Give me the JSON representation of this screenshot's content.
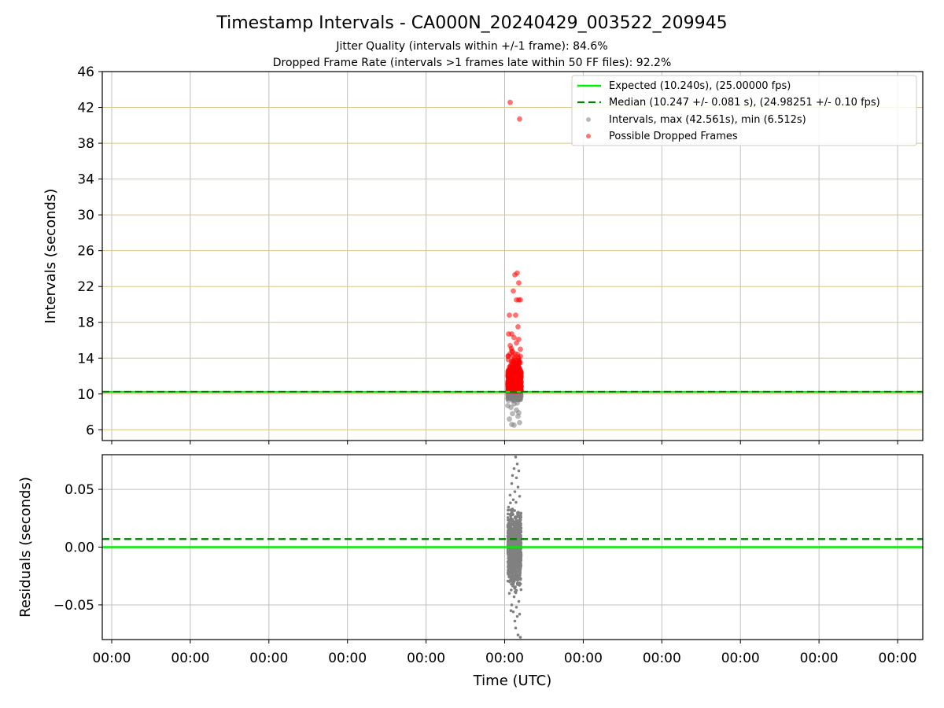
{
  "chart_data": [
    {
      "type": "scatter",
      "panel": "top",
      "title": "Timestamp Intervals - CA000N_20240429_003522_209945",
      "subtitle_lines": [
        "Jitter Quality (intervals within +/-1 frame): 84.6%",
        "Dropped Frame Rate (intervals >1 frames late within 50 FF files): 92.2%"
      ],
      "ylabel": "Intervals (seconds)",
      "xlabel": "",
      "ylim": [
        4.8,
        46
      ],
      "yticks": [
        6,
        10,
        14,
        18,
        22,
        26,
        30,
        34,
        38,
        42,
        46
      ],
      "xlim": [
        -0.12,
        10.32
      ],
      "xtick_positions": [
        0,
        1,
        2,
        3,
        4,
        5,
        6,
        7,
        8,
        9,
        10
      ],
      "xtick_labels": [
        "00:00",
        "00:00",
        "00:00",
        "00:00",
        "00:00",
        "00:00",
        "00:00",
        "00:00",
        "00:00",
        "00:00",
        "00:00"
      ],
      "grid": true,
      "legend_position": "top-right",
      "legend": [
        "Expected (10.240s), (25.00000 fps)",
        "Median (10.247 +/- 0.081 s), (24.98251 +/- 0.10 fps)",
        "Intervals, max (42.561s), min (6.512s)",
        "Possible Dropped Frames"
      ],
      "expected_line": 10.24,
      "median_line": 10.247,
      "series": [
        {
          "name": "Intervals",
          "color": "#808080",
          "points": [
            [
              5.05,
              9.6
            ],
            [
              5.1,
              9.3
            ],
            [
              5.12,
              8.9
            ],
            [
              5.08,
              8.5
            ],
            [
              5.15,
              8.2
            ],
            [
              5.1,
              7.8
            ],
            [
              5.17,
              7.5
            ],
            [
              5.06,
              7.2
            ],
            [
              5.09,
              6.6
            ],
            [
              5.12,
              6.52
            ],
            [
              5.19,
              6.8
            ],
            [
              5.16,
              9.0
            ],
            [
              5.04,
              8.7
            ],
            [
              5.2,
              9.4
            ],
            [
              5.18,
              7.9
            ]
          ]
        },
        {
          "name": "Possible Dropped Frames",
          "color": "#ff0000",
          "points": [
            [
              5.07,
              42.56
            ],
            [
              5.19,
              40.7
            ],
            [
              5.13,
              23.3
            ],
            [
              5.16,
              23.5
            ],
            [
              5.18,
              22.4
            ],
            [
              5.11,
              21.5
            ],
            [
              5.15,
              20.5
            ],
            [
              5.18,
              20.5
            ],
            [
              5.2,
              20.5
            ],
            [
              5.06,
              18.8
            ],
            [
              5.14,
              18.8
            ],
            [
              5.17,
              17.5
            ],
            [
              5.05,
              16.7
            ],
            [
              5.09,
              16.7
            ],
            [
              5.12,
              16.3
            ],
            [
              5.18,
              16.1
            ],
            [
              5.15,
              15.7
            ],
            [
              5.07,
              15.4
            ],
            [
              5.2,
              15.0
            ],
            [
              5.1,
              14.7
            ]
          ]
        }
      ]
    },
    {
      "type": "scatter",
      "panel": "bottom",
      "ylabel": "Residuals (seconds)",
      "xlabel": "Time (UTC)",
      "ylim": [
        -0.08,
        0.08
      ],
      "yticks": [
        -0.05,
        0.0,
        0.05
      ],
      "ytick_labels": [
        "−0.05",
        "0.00",
        "0.05"
      ],
      "xlim": [
        -0.12,
        10.32
      ],
      "xtick_positions": [
        0,
        1,
        2,
        3,
        4,
        5,
        6,
        7,
        8,
        9,
        10
      ],
      "xtick_labels": [
        "00:00",
        "00:00",
        "00:00",
        "00:00",
        "00:00",
        "00:00",
        "00:00",
        "00:00",
        "00:00",
        "00:00",
        "00:00"
      ],
      "grid": true,
      "expected_line": 0.0,
      "median_line": 0.007,
      "series": [
        {
          "name": "Residuals",
          "color": "#808080",
          "points": [
            [
              5.14,
              0.078
            ],
            [
              5.16,
              0.072
            ],
            [
              5.12,
              0.068
            ],
            [
              5.18,
              0.066
            ],
            [
              5.1,
              0.062
            ],
            [
              5.15,
              0.06
            ],
            [
              5.09,
              0.055
            ],
            [
              5.17,
              0.052
            ],
            [
              5.13,
              0.048
            ],
            [
              5.07,
              0.045
            ],
            [
              5.19,
              0.044
            ],
            [
              5.11,
              0.041
            ],
            [
              5.06,
              -0.04
            ],
            [
              5.12,
              -0.043
            ],
            [
              5.18,
              -0.047
            ],
            [
              5.09,
              -0.05
            ],
            [
              5.15,
              -0.052
            ],
            [
              5.11,
              -0.056
            ],
            [
              5.16,
              -0.06
            ],
            [
              5.13,
              -0.064
            ],
            [
              5.08,
              -0.055
            ],
            [
              5.19,
              -0.058
            ],
            [
              5.14,
              -0.07
            ],
            [
              5.17,
              -0.076
            ],
            [
              5.2,
              -0.078
            ]
          ]
        }
      ]
    }
  ]
}
